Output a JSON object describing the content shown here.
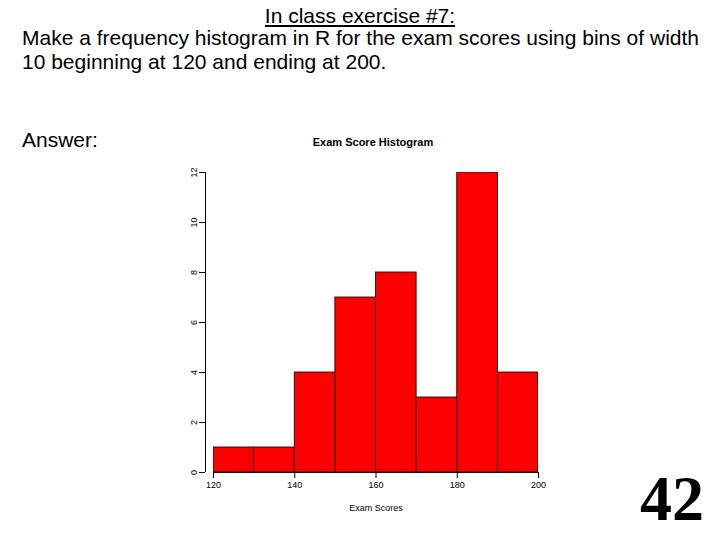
{
  "slide": {
    "heading": "In class exercise #7:",
    "body": "Make a frequency histogram in R for the exam scores using bins of width 10 beginning at 120 and ending at 200.",
    "answer_label": "Answer:",
    "page_number": "42"
  },
  "chart_data": {
    "type": "histogram",
    "title": "Exam Score Histogram",
    "x_label": "Exam Scores",
    "bins": [
      120,
      130,
      140,
      150,
      160,
      170,
      180,
      190,
      200
    ],
    "values": [
      1,
      1,
      4,
      7,
      8,
      3,
      12,
      4
    ],
    "color": "#ff0000",
    "xlim": [
      120,
      200
    ],
    "xticks": [
      120,
      140,
      160,
      180,
      200
    ],
    "ylim": [
      0,
      12
    ],
    "yticks": [
      0,
      2,
      4,
      6,
      8,
      10,
      12
    ],
    "grid": false
  }
}
